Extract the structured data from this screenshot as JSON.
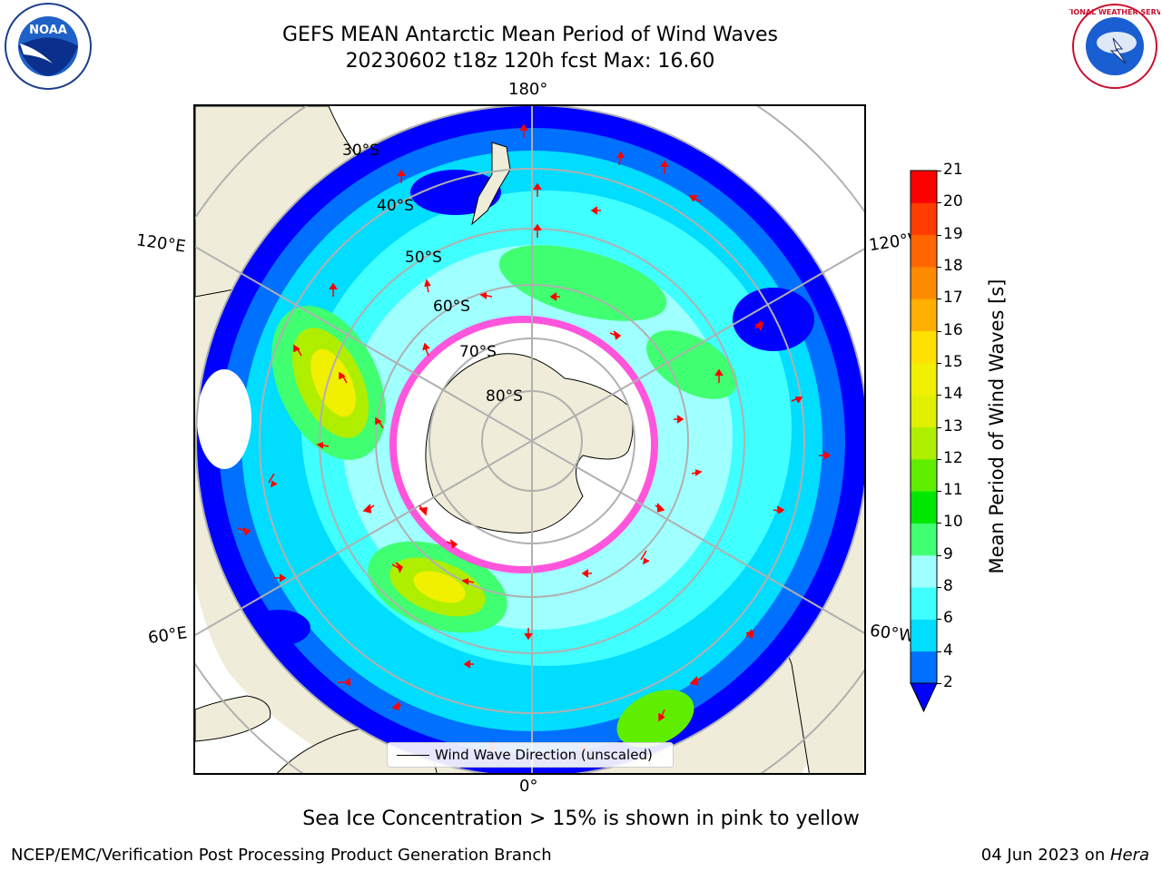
{
  "title_line1": "GEFS MEAN Antarctic Mean Period of Wind Waves",
  "title_line2": "20230602 t18z 120h fcst   Max: 16.60",
  "lon_labels": {
    "top": "180°",
    "bottom": "0°",
    "left_upper": "120°E",
    "right_upper": "120°W",
    "left_lower": "60°E",
    "right_lower": "60°W"
  },
  "lat_labels": [
    "30°S",
    "40°S",
    "50°S",
    "60°S",
    "70°S",
    "80°S"
  ],
  "colorbar": {
    "label": "Mean Period of Wind Waves [s]",
    "ticks": [
      "2",
      "4",
      "6",
      "8",
      "9",
      "10",
      "11",
      "12",
      "13",
      "14",
      "15",
      "16",
      "17",
      "18",
      "19",
      "20",
      "21"
    ],
    "colors": [
      "#0070ff",
      "#00ddff",
      "#40ffff",
      "#a0ffff",
      "#40ff70",
      "#00e800",
      "#60ee00",
      "#b0ee00",
      "#e0f000",
      "#f0f000",
      "#ffe000",
      "#ffb000",
      "#ff8a00",
      "#ff6600",
      "#ff3c00",
      "#ff0000"
    ],
    "under_color": "#0000ff"
  },
  "legend_text": "Wind Wave Direction (unscaled)",
  "footer_note": "Sea Ice Concentration > 15% is shown in pink to yellow",
  "footer_left": "NCEP/EMC/Verification Post Processing Product Generation Branch",
  "footer_right_date": "04 Jun 2023 on ",
  "footer_right_host": "Hera",
  "colors": {
    "land": "#efedd9",
    "ocean_low": "#0000ff",
    "sea_ice": "#ff55dd",
    "arrow": "#ff0000",
    "grid": "#b0b0b0"
  },
  "logos": {
    "left": "NOAA",
    "right": "NATIONAL WEATHER SERVICE"
  }
}
